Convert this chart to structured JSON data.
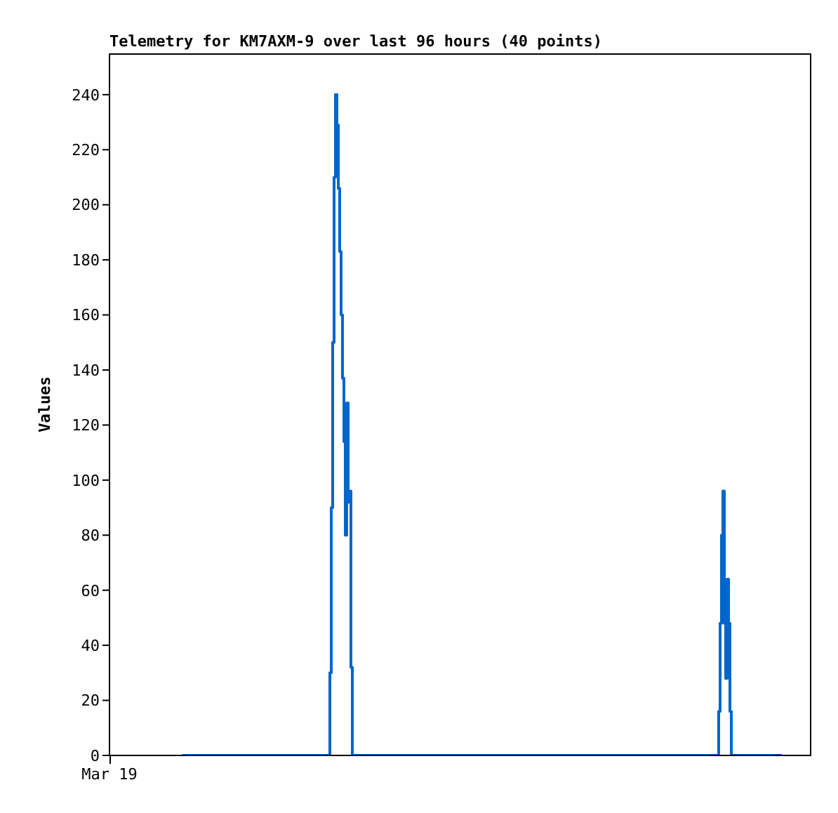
{
  "chart_data": {
    "type": "step",
    "title": "Telemetry for KM7AXM-9 over last 96 hours (40 points)",
    "ylabel": "Values",
    "annotations": [
      "Mar 19"
    ],
    "ylim": [
      0,
      255
    ],
    "yticks": [
      0,
      20,
      40,
      60,
      80,
      100,
      120,
      140,
      160,
      180,
      200,
      220,
      240
    ],
    "marker": "none",
    "categories": [
      null,
      null,
      null,
      null,
      null,
      null,
      null,
      null,
      null,
      null,
      null,
      null,
      null,
      null,
      null,
      null,
      null,
      null,
      null,
      null,
      null,
      null,
      null,
      null,
      null,
      null,
      null,
      null,
      null,
      null,
      null,
      null,
      null,
      null,
      null,
      null,
      null,
      null,
      null,
      null,
      null,
      null,
      null,
      null,
      null,
      null,
      null,
      null,
      null,
      null,
      null,
      null,
      null,
      null,
      null,
      null,
      null,
      null,
      null,
      null,
      null,
      null,
      null,
      null,
      null,
      null,
      null,
      null,
      null,
      null,
      null,
      null,
      null,
      null,
      null,
      null,
      null,
      null,
      null,
      null,
      null,
      null,
      null,
      null,
      null,
      null,
      null,
      null,
      null,
      null,
      null,
      null,
      null,
      null,
      null,
      null,
      null,
      null,
      null,
      null,
      null,
      null,
      null,
      null,
      null,
      null,
      null,
      null,
      null,
      null,
      null,
      null,
      null,
      null,
      null,
      null,
      null,
      null,
      null,
      null,
      null,
      null,
      null,
      null,
      null,
      null,
      null,
      null,
      null,
      null,
      null,
      null,
      null,
      null,
      null,
      null,
      null,
      null,
      null,
      null,
      null,
      null,
      null,
      null,
      null,
      null,
      null,
      null,
      null,
      null,
      null,
      null,
      null,
      null,
      null,
      null,
      null,
      null,
      null,
      null,
      null,
      null,
      null,
      null,
      null,
      null,
      null,
      null,
      null,
      null,
      null,
      null,
      null,
      null,
      null,
      null,
      null,
      null,
      null,
      null,
      null,
      null,
      null,
      null,
      null,
      null,
      null,
      null,
      null,
      null,
      null,
      null,
      null,
      null,
      null,
      null,
      null,
      null,
      null,
      null,
      null,
      null,
      null,
      null,
      null,
      null,
      null,
      null,
      null,
      null,
      null,
      null,
      null,
      null,
      null,
      null,
      null,
      null,
      null,
      null,
      null,
      null,
      null,
      null,
      null,
      null,
      null,
      null,
      null,
      null,
      null,
      null,
      null,
      null,
      null,
      null,
      null,
      null,
      null,
      null,
      null,
      null,
      null,
      null,
      null,
      null,
      null,
      null,
      null,
      null,
      null,
      null,
      null,
      null,
      null,
      null,
      null,
      null,
      null,
      null,
      null,
      null,
      null,
      null,
      null,
      null,
      null,
      null,
      null,
      null,
      null,
      null,
      null,
      null,
      null,
      null,
      null,
      null,
      null,
      null,
      null,
      null,
      null,
      null,
      null,
      null,
      null,
      null,
      null,
      null,
      null,
      null,
      null,
      null,
      null,
      null,
      null,
      null,
      null,
      null,
      null,
      null,
      null,
      null,
      null,
      null,
      null,
      null,
      null,
      null,
      null,
      null,
      null,
      null,
      null,
      null,
      null,
      null,
      null,
      null,
      null,
      null,
      null,
      null,
      null,
      null,
      null,
      null,
      null,
      null,
      null,
      null,
      null,
      null,
      null,
      null,
      null,
      null,
      null,
      null,
      null,
      null,
      null,
      null,
      null,
      null,
      null,
      null,
      null,
      null,
      null,
      null,
      null,
      null,
      null,
      null,
      null,
      null,
      null,
      null,
      null,
      null,
      null,
      null,
      null,
      null,
      null,
      null,
      null,
      null,
      null,
      null,
      null,
      null,
      null,
      null,
      null,
      null,
      null,
      null,
      null,
      null,
      null,
      null,
      null,
      null,
      null,
      null,
      null,
      null,
      null,
      null,
      null,
      null,
      null,
      null,
      null,
      null,
      null,
      null,
      null,
      null,
      null,
      null,
      null,
      null,
      null,
      null,
      null,
      null,
      null,
      null,
      null,
      null,
      null,
      null,
      null,
      null,
      null,
      null,
      null,
      null,
      null,
      null,
      null,
      null,
      null,
      null
    ],
    "series": [
      {
        "color": "#0066cc",
        "values": [
          0,
          0,
          0,
          0,
          0,
          0,
          0,
          0,
          0,
          0,
          0,
          0,
          0,
          0,
          0,
          0,
          0,
          0,
          0,
          0,
          0,
          0,
          0,
          0,
          0,
          0,
          0,
          0,
          0,
          0,
          0,
          0,
          0,
          0,
          0,
          0,
          0,
          0,
          0,
          0,
          0,
          0,
          0,
          0,
          0,
          0,
          0,
          0,
          0,
          0,
          0,
          0,
          0,
          0,
          0,
          0,
          0,
          0,
          0,
          0,
          0,
          0,
          0,
          0,
          0,
          0,
          0,
          0,
          0,
          0,
          0,
          0,
          0,
          0,
          0,
          0,
          0,
          0,
          0,
          0,
          0,
          0,
          0,
          0,
          0,
          0,
          0,
          0,
          0,
          0,
          0,
          0,
          0,
          0,
          0,
          0,
          0,
          0,
          0,
          0,
          0,
          0,
          0,
          0,
          0,
          30,
          90,
          150,
          210,
          240,
          229,
          206,
          183,
          160,
          137,
          114,
          80,
          128,
          92,
          96,
          32,
          0,
          0,
          0,
          0,
          0,
          0,
          0,
          0,
          0,
          0,
          0,
          0,
          0,
          0,
          0,
          0,
          0,
          0,
          0,
          0,
          0,
          0,
          0,
          0,
          0,
          0,
          0,
          0,
          0,
          0,
          0,
          0,
          0,
          0,
          0,
          0,
          0,
          0,
          0,
          0,
          0,
          0,
          0,
          0,
          0,
          0,
          0,
          0,
          0,
          0,
          0,
          0,
          0,
          0,
          0,
          0,
          0,
          0,
          0,
          0,
          0,
          0,
          0,
          0,
          0,
          0,
          0,
          0,
          0,
          0,
          0,
          0,
          0,
          0,
          0,
          0,
          0,
          0,
          0,
          0,
          0,
          0,
          0,
          0,
          0,
          0,
          0,
          0,
          0,
          0,
          0,
          0,
          0,
          0,
          0,
          0,
          0,
          0,
          0,
          0,
          0,
          0,
          0,
          0,
          0,
          0,
          0,
          0,
          0,
          0,
          0,
          0,
          0,
          0,
          0,
          0,
          0,
          0,
          0,
          0,
          0,
          0,
          0,
          0,
          0,
          0,
          0,
          0,
          0,
          0,
          0,
          0,
          0,
          0,
          0,
          0,
          0,
          0,
          0,
          0,
          0,
          0,
          0,
          0,
          0,
          0,
          0,
          0,
          0,
          0,
          0,
          0,
          0,
          0,
          0,
          0,
          0,
          0,
          0,
          0,
          0,
          0,
          0,
          0,
          0,
          0,
          0,
          0,
          0,
          0,
          0,
          0,
          0,
          0,
          0,
          0,
          0,
          0,
          0,
          0,
          0,
          0,
          0,
          0,
          0,
          0,
          0,
          0,
          0,
          0,
          0,
          0,
          0,
          0,
          0,
          0,
          0,
          0,
          0,
          0,
          0,
          0,
          0,
          0,
          0,
          0,
          0,
          0,
          0,
          0,
          0,
          0,
          0,
          0,
          0,
          0,
          0,
          0,
          0,
          0,
          0,
          0,
          0,
          0,
          0,
          0,
          0,
          0,
          0,
          0,
          0,
          0,
          0,
          0,
          0,
          0,
          0,
          0,
          0,
          0,
          0,
          0,
          0,
          0,
          0,
          0,
          0,
          0,
          0,
          0,
          0,
          0,
          0,
          0,
          0,
          0,
          0,
          0,
          0,
          0,
          0,
          16,
          48,
          80,
          96,
          48,
          28,
          64,
          48,
          16,
          0,
          0,
          0,
          0,
          0,
          0,
          0,
          0,
          0,
          0,
          0,
          0,
          0,
          0,
          0,
          0,
          0,
          0,
          0,
          0,
          0,
          0,
          0,
          0,
          0,
          0,
          0,
          0,
          0,
          0,
          0,
          0,
          0,
          0,
          0,
          0,
          0
        ]
      }
    ]
  }
}
